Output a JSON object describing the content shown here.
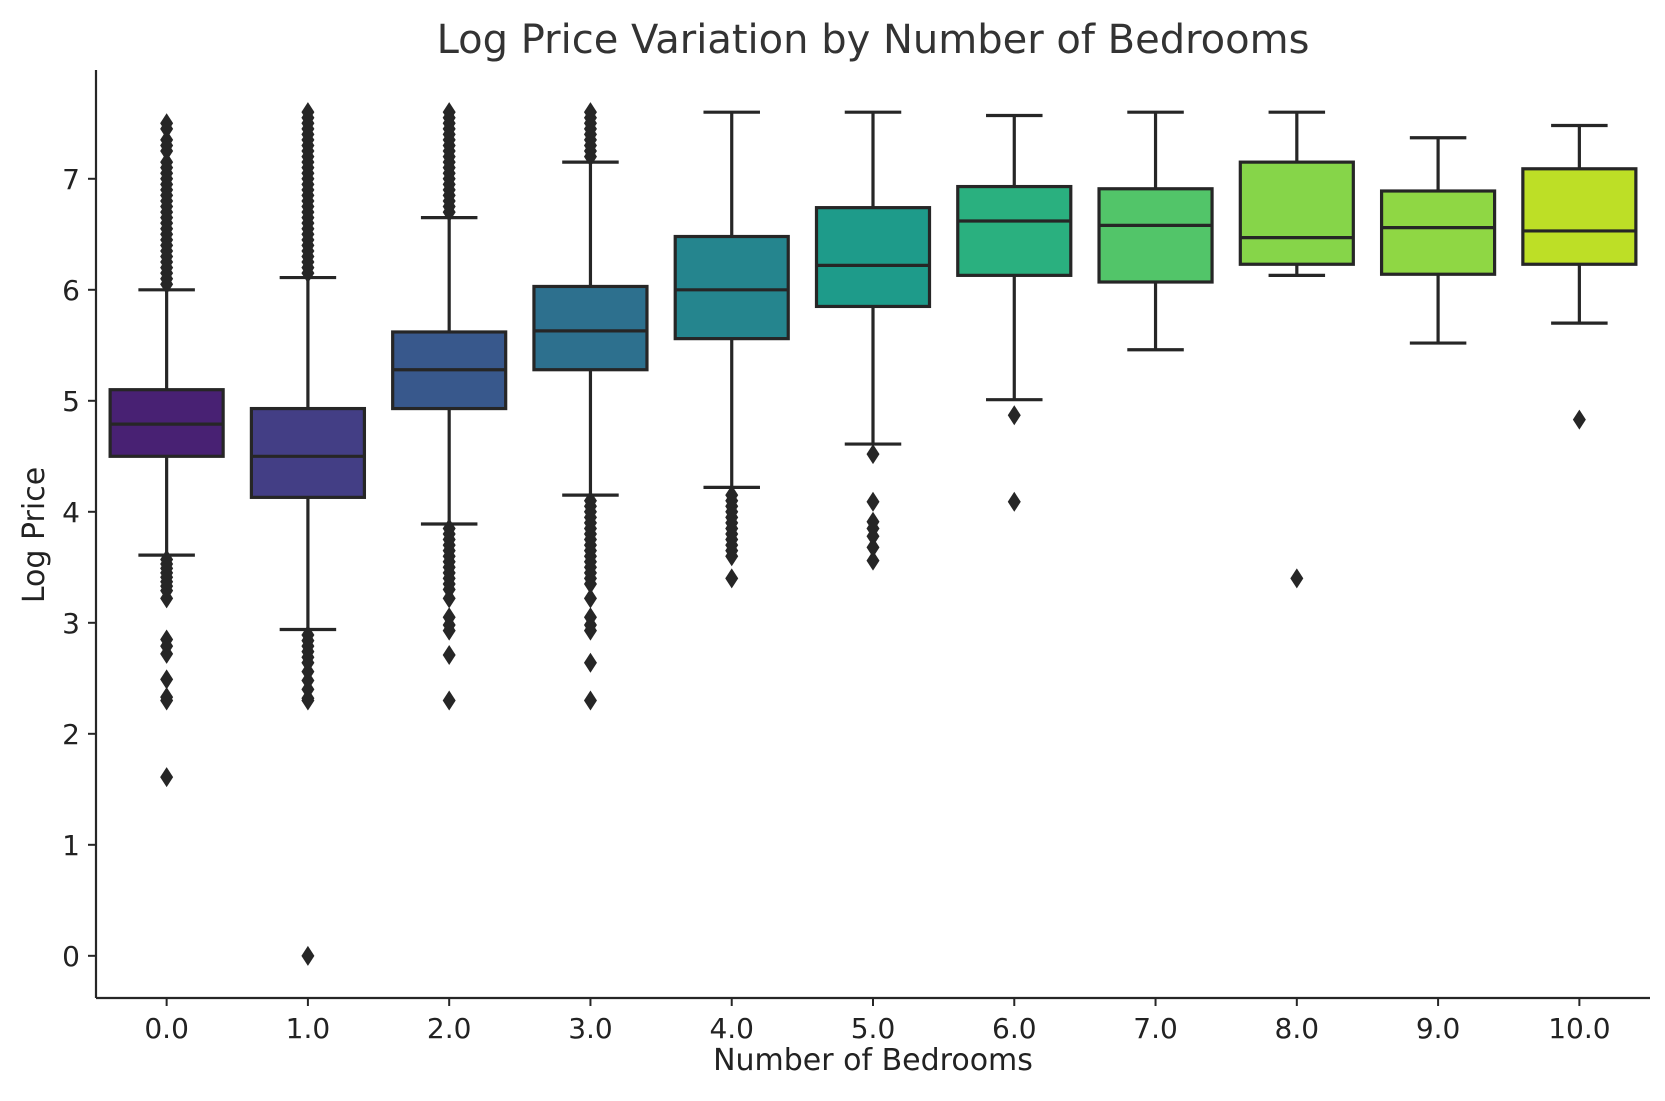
{
  "chart_data": {
    "type": "box",
    "title": "Log Price Variation by Number of Bedrooms",
    "xlabel": "Number of Bedrooms",
    "ylabel": "Log Price",
    "ylim": [
      -0.38,
      7.98
    ],
    "yticks": [
      "0",
      "1",
      "2",
      "3",
      "4",
      "5",
      "6",
      "7"
    ],
    "grid": false,
    "palette": "viridis",
    "outlier_marker": "diamond",
    "categories": [
      "0.0",
      "1.0",
      "2.0",
      "3.0",
      "4.0",
      "5.0",
      "6.0",
      "7.0",
      "8.0",
      "9.0",
      "10.0"
    ],
    "boxes": [
      {
        "category": "0.0",
        "whisker_low": 3.61,
        "q1": 4.5,
        "median": 4.79,
        "q3": 5.1,
        "whisker_high": 6.0,
        "color": "#482173",
        "outliers": [
          7.5,
          7.45,
          7.35,
          7.3,
          7.25,
          7.15,
          7.1,
          7.05,
          7.0,
          6.95,
          6.9,
          6.85,
          6.8,
          6.75,
          6.7,
          6.65,
          6.6,
          6.55,
          6.5,
          6.45,
          6.4,
          6.35,
          6.3,
          6.25,
          6.2,
          6.15,
          6.1,
          6.05,
          3.57,
          3.53,
          3.49,
          3.45,
          3.41,
          3.37,
          3.33,
          3.29,
          3.22,
          2.85,
          2.79,
          2.72,
          2.49,
          2.33,
          2.3,
          1.61
        ]
      },
      {
        "category": "1.0",
        "whisker_low": 2.94,
        "q1": 4.13,
        "median": 4.5,
        "q3": 4.93,
        "whisker_high": 6.11,
        "color": "#433e85",
        "outliers": [
          7.6,
          7.55,
          7.5,
          7.45,
          7.4,
          7.35,
          7.3,
          7.25,
          7.2,
          7.15,
          7.1,
          7.05,
          7.0,
          6.95,
          6.9,
          6.85,
          6.8,
          6.75,
          6.7,
          6.65,
          6.6,
          6.55,
          6.5,
          6.45,
          6.4,
          6.35,
          6.3,
          6.25,
          6.2,
          6.15,
          2.89,
          2.84,
          2.79,
          2.74,
          2.69,
          2.64,
          2.56,
          2.48,
          2.4,
          2.32,
          2.3,
          0.0
        ]
      },
      {
        "category": "2.0",
        "whisker_low": 3.89,
        "q1": 4.93,
        "median": 5.28,
        "q3": 5.62,
        "whisker_high": 6.65,
        "color": "#38588c",
        "outliers": [
          7.6,
          7.55,
          7.5,
          7.45,
          7.4,
          7.35,
          7.3,
          7.25,
          7.2,
          7.15,
          7.1,
          7.05,
          7.0,
          6.95,
          6.9,
          6.85,
          6.8,
          6.75,
          6.7,
          3.85,
          3.8,
          3.75,
          3.7,
          3.65,
          3.6,
          3.55,
          3.5,
          3.45,
          3.4,
          3.35,
          3.3,
          3.22,
          3.05,
          2.98,
          2.93,
          2.71,
          2.3
        ]
      },
      {
        "category": "3.0",
        "whisker_low": 4.15,
        "q1": 5.28,
        "median": 5.63,
        "q3": 6.03,
        "whisker_high": 7.15,
        "color": "#2d708e",
        "outliers": [
          7.6,
          7.55,
          7.5,
          7.45,
          7.4,
          7.35,
          7.3,
          7.25,
          7.2,
          4.1,
          4.05,
          4.0,
          3.95,
          3.9,
          3.85,
          3.8,
          3.75,
          3.7,
          3.65,
          3.6,
          3.55,
          3.5,
          3.45,
          3.4,
          3.35,
          3.22,
          3.05,
          2.98,
          2.93,
          2.64,
          2.3
        ]
      },
      {
        "category": "4.0",
        "whisker_low": 4.22,
        "q1": 5.56,
        "median": 6.0,
        "q3": 6.48,
        "whisker_high": 7.6,
        "color": "#25858e",
        "outliers": [
          4.15,
          4.1,
          4.05,
          4.0,
          3.95,
          3.9,
          3.85,
          3.8,
          3.75,
          3.7,
          3.65,
          3.6,
          3.4
        ]
      },
      {
        "category": "5.0",
        "whisker_low": 4.61,
        "q1": 5.85,
        "median": 6.22,
        "q3": 6.74,
        "whisker_high": 7.6,
        "color": "#1e9b8a",
        "outliers": [
          4.52,
          4.09,
          3.91,
          3.85,
          3.78,
          3.68,
          3.56
        ]
      },
      {
        "category": "6.0",
        "whisker_low": 5.01,
        "q1": 6.13,
        "median": 6.62,
        "q3": 6.93,
        "whisker_high": 7.57,
        "color": "#2ab07f",
        "outliers": [
          4.87,
          4.09
        ]
      },
      {
        "category": "7.0",
        "whisker_low": 5.46,
        "q1": 6.07,
        "median": 6.58,
        "q3": 6.91,
        "whisker_high": 7.6,
        "color": "#52c569",
        "outliers": []
      },
      {
        "category": "8.0",
        "whisker_low": 6.13,
        "q1": 6.23,
        "median": 6.47,
        "q3": 7.15,
        "whisker_high": 7.6,
        "color": "#86d549",
        "outliers": [
          3.4
        ]
      },
      {
        "category": "9.0",
        "whisker_low": 5.52,
        "q1": 6.14,
        "median": 6.56,
        "q3": 6.89,
        "whisker_high": 7.37,
        "color": "#8fd744",
        "outliers": []
      },
      {
        "category": "10.0",
        "whisker_low": 5.7,
        "q1": 6.23,
        "median": 6.53,
        "q3": 7.09,
        "whisker_high": 7.48,
        "color": "#bddf26",
        "outliers": [
          4.83
        ]
      }
    ]
  }
}
